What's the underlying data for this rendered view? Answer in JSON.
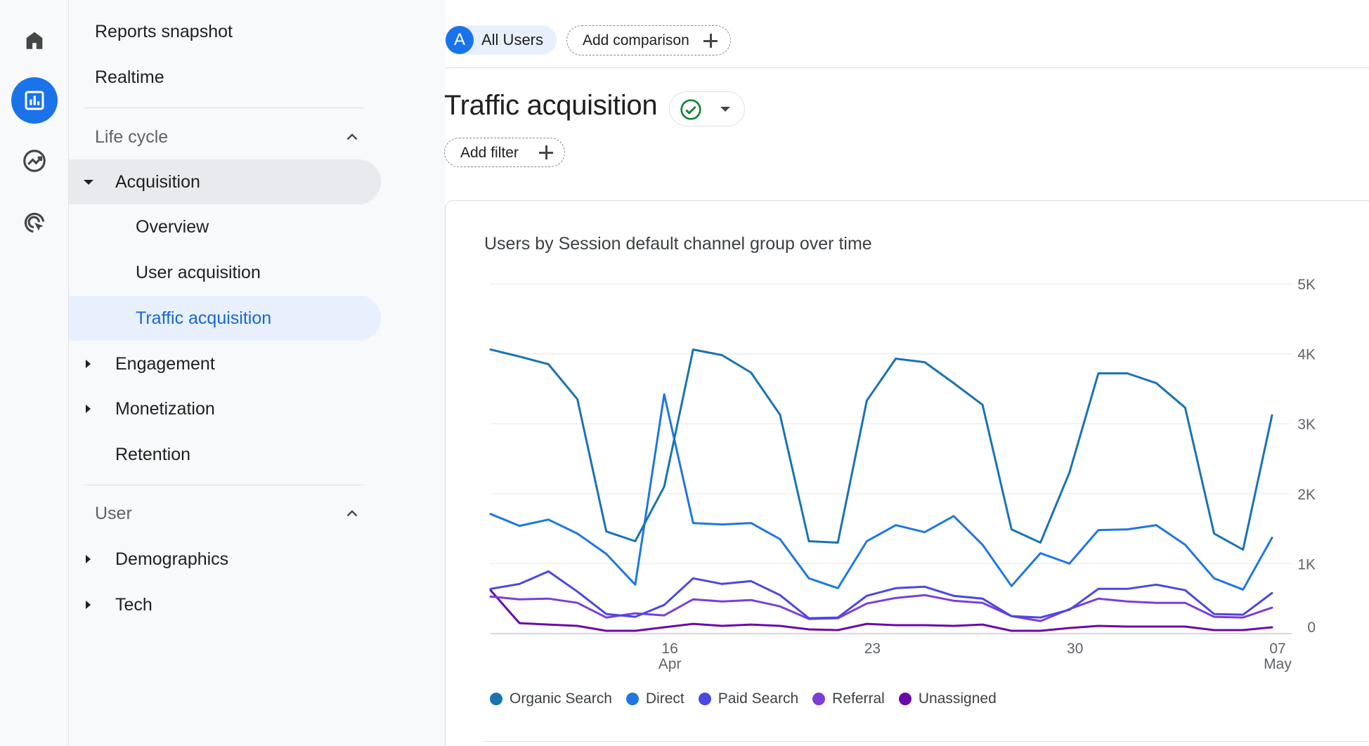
{
  "rail": {
    "items": [
      {
        "name": "home",
        "icon": "home-icon",
        "active": false
      },
      {
        "name": "reports",
        "icon": "bar-chart-icon",
        "active": true
      },
      {
        "name": "explore",
        "icon": "explore-trend-icon",
        "active": false
      },
      {
        "name": "advertising",
        "icon": "ads-target-icon",
        "active": false
      }
    ]
  },
  "sidebar": {
    "reports_snapshot": "Reports snapshot",
    "realtime": "Realtime",
    "lifecycle": {
      "label": "Life cycle",
      "acquisition": "Acquisition",
      "overview": "Overview",
      "user_acquisition": "User acquisition",
      "traffic_acquisition": "Traffic acquisition",
      "engagement": "Engagement",
      "monetization": "Monetization",
      "retention": "Retention"
    },
    "user": {
      "label": "User",
      "demographics": "Demographics",
      "tech": "Tech"
    }
  },
  "topbar": {
    "avatar_letter": "A",
    "segment": "All Users",
    "add_comparison": "Add comparison"
  },
  "page": {
    "title": "Traffic acquisition",
    "add_filter": "Add filter"
  },
  "colors": {
    "accent": "#1a73e8",
    "check": "#188038"
  },
  "chart_data": {
    "type": "line",
    "title": "Users by Session default channel group over time",
    "y_ticks": [
      "0",
      "1K",
      "2K",
      "3K",
      "4K",
      "5K"
    ],
    "ylim": [
      0,
      5000
    ],
    "x_ticks": [
      {
        "index": 6,
        "label": "16",
        "sub": "Apr"
      },
      {
        "index": 13,
        "label": "23",
        "sub": ""
      },
      {
        "index": 20,
        "label": "30",
        "sub": ""
      },
      {
        "index": 27,
        "label": "07",
        "sub": "May"
      }
    ],
    "legend_position": "bottom",
    "grid": true,
    "series": [
      {
        "name": "Organic Search",
        "color": "#1a73b0",
        "values": [
          4060,
          3960,
          3850,
          3350,
          1460,
          1320,
          2100,
          4060,
          3980,
          3730,
          3130,
          1320,
          1300,
          3330,
          3930,
          3880,
          3580,
          3270,
          1490,
          1300,
          2300,
          3720,
          3720,
          3580,
          3230,
          1430,
          1200,
          3120
        ]
      },
      {
        "name": "Direct",
        "color": "#1f77e0",
        "values": [
          1710,
          1540,
          1630,
          1430,
          1140,
          700,
          3420,
          1580,
          1560,
          1580,
          1350,
          790,
          650,
          1320,
          1550,
          1450,
          1680,
          1270,
          680,
          1150,
          1000,
          1480,
          1490,
          1550,
          1270,
          790,
          630,
          1370
        ]
      },
      {
        "name": "Paid Search",
        "color": "#4a48e0",
        "values": [
          640,
          710,
          890,
          600,
          280,
          240,
          410,
          790,
          710,
          750,
          550,
          220,
          230,
          540,
          650,
          670,
          540,
          500,
          250,
          230,
          340,
          640,
          640,
          700,
          620,
          280,
          270,
          580
        ]
      },
      {
        "name": "Referral",
        "color": "#7b3fd6",
        "values": [
          530,
          490,
          500,
          440,
          230,
          290,
          260,
          490,
          460,
          480,
          390,
          210,
          220,
          430,
          510,
          550,
          470,
          440,
          250,
          180,
          350,
          500,
          460,
          440,
          440,
          240,
          230,
          370
        ]
      },
      {
        "name": "Unassigned",
        "color": "#6a0aa8",
        "values": [
          620,
          150,
          130,
          110,
          40,
          40,
          90,
          140,
          110,
          130,
          110,
          60,
          50,
          140,
          120,
          120,
          110,
          130,
          40,
          40,
          80,
          110,
          100,
          100,
          100,
          50,
          50,
          90
        ]
      }
    ]
  }
}
